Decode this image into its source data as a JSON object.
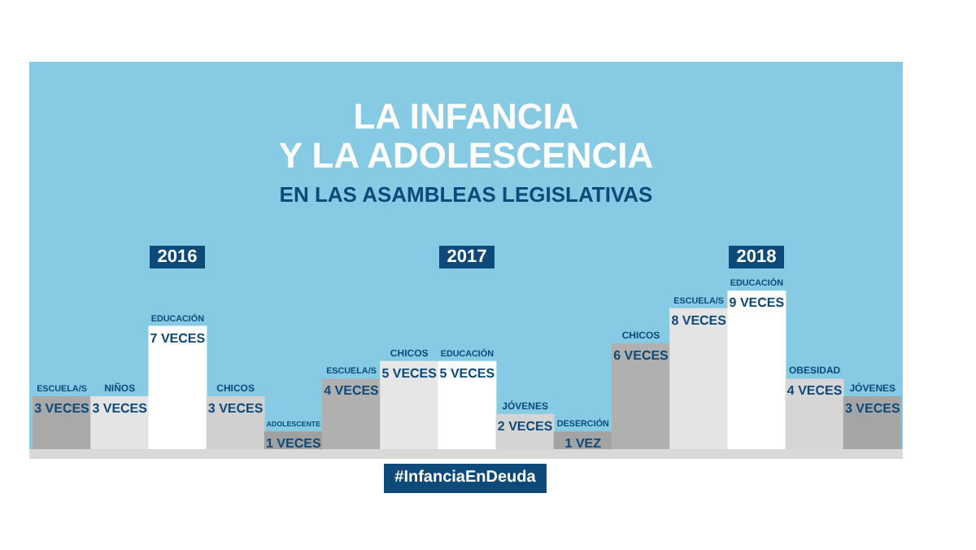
{
  "chart_data": [
    {
      "type": "bar",
      "title": "2016",
      "annotations": [
        "LA INFANCIA",
        "Y LA ADOLESCENCIA",
        "EN LAS ASAMBLEAS LEGISLATIVAS"
      ],
      "categories": [
        "ESCUELA/S",
        "NIÑOS",
        "EDUCACIÓN",
        "CHICOS",
        "ADOLESCENTE"
      ],
      "values": [
        3,
        3,
        7,
        3,
        1
      ],
      "colors": [
        "#a9a9a9",
        "#e4e4e4",
        "#ffffff",
        "#d0d0d0",
        "#a0a0a0"
      ],
      "value_labels": [
        "3 VECES",
        "3 VECES",
        "7 VECES",
        "3 VECES",
        "1 VECES"
      ]
    },
    {
      "type": "bar",
      "title": "2017",
      "annotations": [
        "#InfanciaEnDeuda"
      ],
      "categories": [
        "ESCUELA/S",
        "CHICOS",
        "EDUCACIÓN",
        "JÓVENES",
        "DESERCIÓN"
      ],
      "values": [
        4,
        5,
        5,
        2,
        1
      ],
      "colors": [
        "#b0b0b0",
        "#e6e6e6",
        "#ffffff",
        "#d4d4d4",
        "#a3a3a3"
      ],
      "value_labels": [
        "4 VECES",
        "5 VECES",
        "5 VECES",
        "2 VECES",
        "1 VEZ"
      ]
    },
    {
      "type": "bar",
      "title": "2018",
      "categories": [
        "CHICOS",
        "ESCUELA/S",
        "EDUCACIÓN",
        "OBESIDAD",
        "JÓVENES"
      ],
      "values": [
        6,
        8,
        9,
        4,
        3
      ],
      "colors": [
        "#b0b0b0",
        "#e4e4e4",
        "#ffffff",
        "#d6d6d6",
        "#a5a5a5"
      ],
      "value_labels": [
        "6 VECES",
        "8 VECES",
        "9 VECES",
        "4 VECES",
        "3 VECES"
      ]
    }
  ]
}
